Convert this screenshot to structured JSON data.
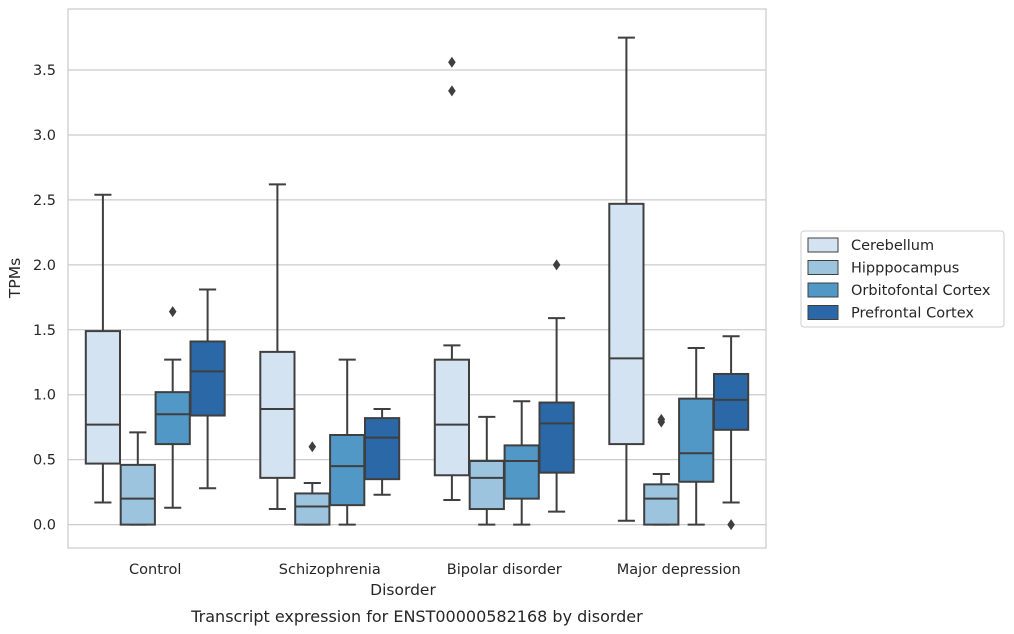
{
  "chart_data": {
    "type": "box",
    "caption": "Transcript expression for ENST00000582168 by disorder",
    "xlabel": "Disorder",
    "ylabel": "TPMs",
    "ylim": [
      -0.18,
      3.97
    ],
    "yticks": [
      "0.0",
      "0.5",
      "1.0",
      "1.5",
      "2.0",
      "2.5",
      "3.0",
      "3.5"
    ],
    "grid": "horizontal",
    "legend_position": "right",
    "categories": [
      "Control",
      "Schizophrenia",
      "Bipolar disorder",
      "Major depression"
    ],
    "series": [
      {
        "name": "Cerebellum",
        "color": "#d4e3f2",
        "boxes": [
          {
            "whislo": 0.17,
            "q1": 0.47,
            "med": 0.77,
            "q3": 1.49,
            "whishi": 2.54,
            "fliers": []
          },
          {
            "whislo": 0.12,
            "q1": 0.36,
            "med": 0.89,
            "q3": 1.33,
            "whishi": 2.62,
            "fliers": []
          },
          {
            "whislo": 0.19,
            "q1": 0.38,
            "med": 0.77,
            "q3": 1.27,
            "whishi": 1.38,
            "fliers": [
              3.34,
              3.56
            ]
          },
          {
            "whislo": 0.03,
            "q1": 0.62,
            "med": 1.28,
            "q3": 2.47,
            "whishi": 3.75,
            "fliers": []
          }
        ]
      },
      {
        "name": "Hipppocampus",
        "color": "#9cc4df",
        "boxes": [
          {
            "whislo": 0.0,
            "q1": 0.0,
            "med": 0.2,
            "q3": 0.46,
            "whishi": 0.71,
            "fliers": []
          },
          {
            "whislo": 0.0,
            "q1": 0.0,
            "med": 0.14,
            "q3": 0.24,
            "whishi": 0.32,
            "fliers": [
              0.6
            ]
          },
          {
            "whislo": 0.0,
            "q1": 0.12,
            "med": 0.36,
            "q3": 0.49,
            "whishi": 0.83,
            "fliers": []
          },
          {
            "whislo": 0.0,
            "q1": 0.0,
            "med": 0.2,
            "q3": 0.31,
            "whishi": 0.39,
            "fliers": [
              0.79,
              0.81
            ]
          }
        ]
      },
      {
        "name": "Orbitofontal Cortex",
        "color": "#5298c6",
        "boxes": [
          {
            "whislo": 0.13,
            "q1": 0.62,
            "med": 0.85,
            "q3": 1.02,
            "whishi": 1.27,
            "fliers": [
              1.64
            ]
          },
          {
            "whislo": 0.0,
            "q1": 0.15,
            "med": 0.45,
            "q3": 0.69,
            "whishi": 1.27,
            "fliers": []
          },
          {
            "whislo": 0.0,
            "q1": 0.2,
            "med": 0.49,
            "q3": 0.61,
            "whishi": 0.95,
            "fliers": []
          },
          {
            "whislo": 0.0,
            "q1": 0.33,
            "med": 0.55,
            "q3": 0.97,
            "whishi": 1.36,
            "fliers": []
          }
        ]
      },
      {
        "name": "Prefrontal Cortex",
        "color": "#2a68a7",
        "boxes": [
          {
            "whislo": 0.28,
            "q1": 0.84,
            "med": 1.18,
            "q3": 1.41,
            "whishi": 1.81,
            "fliers": []
          },
          {
            "whislo": 0.23,
            "q1": 0.35,
            "med": 0.67,
            "q3": 0.82,
            "whishi": 0.89,
            "fliers": []
          },
          {
            "whislo": 0.1,
            "q1": 0.4,
            "med": 0.78,
            "q3": 0.94,
            "whishi": 1.59,
            "fliers": [
              2.0
            ]
          },
          {
            "whislo": 0.17,
            "q1": 0.73,
            "med": 0.96,
            "q3": 1.16,
            "whishi": 1.45,
            "fliers": [
              0.0
            ]
          }
        ]
      }
    ]
  }
}
